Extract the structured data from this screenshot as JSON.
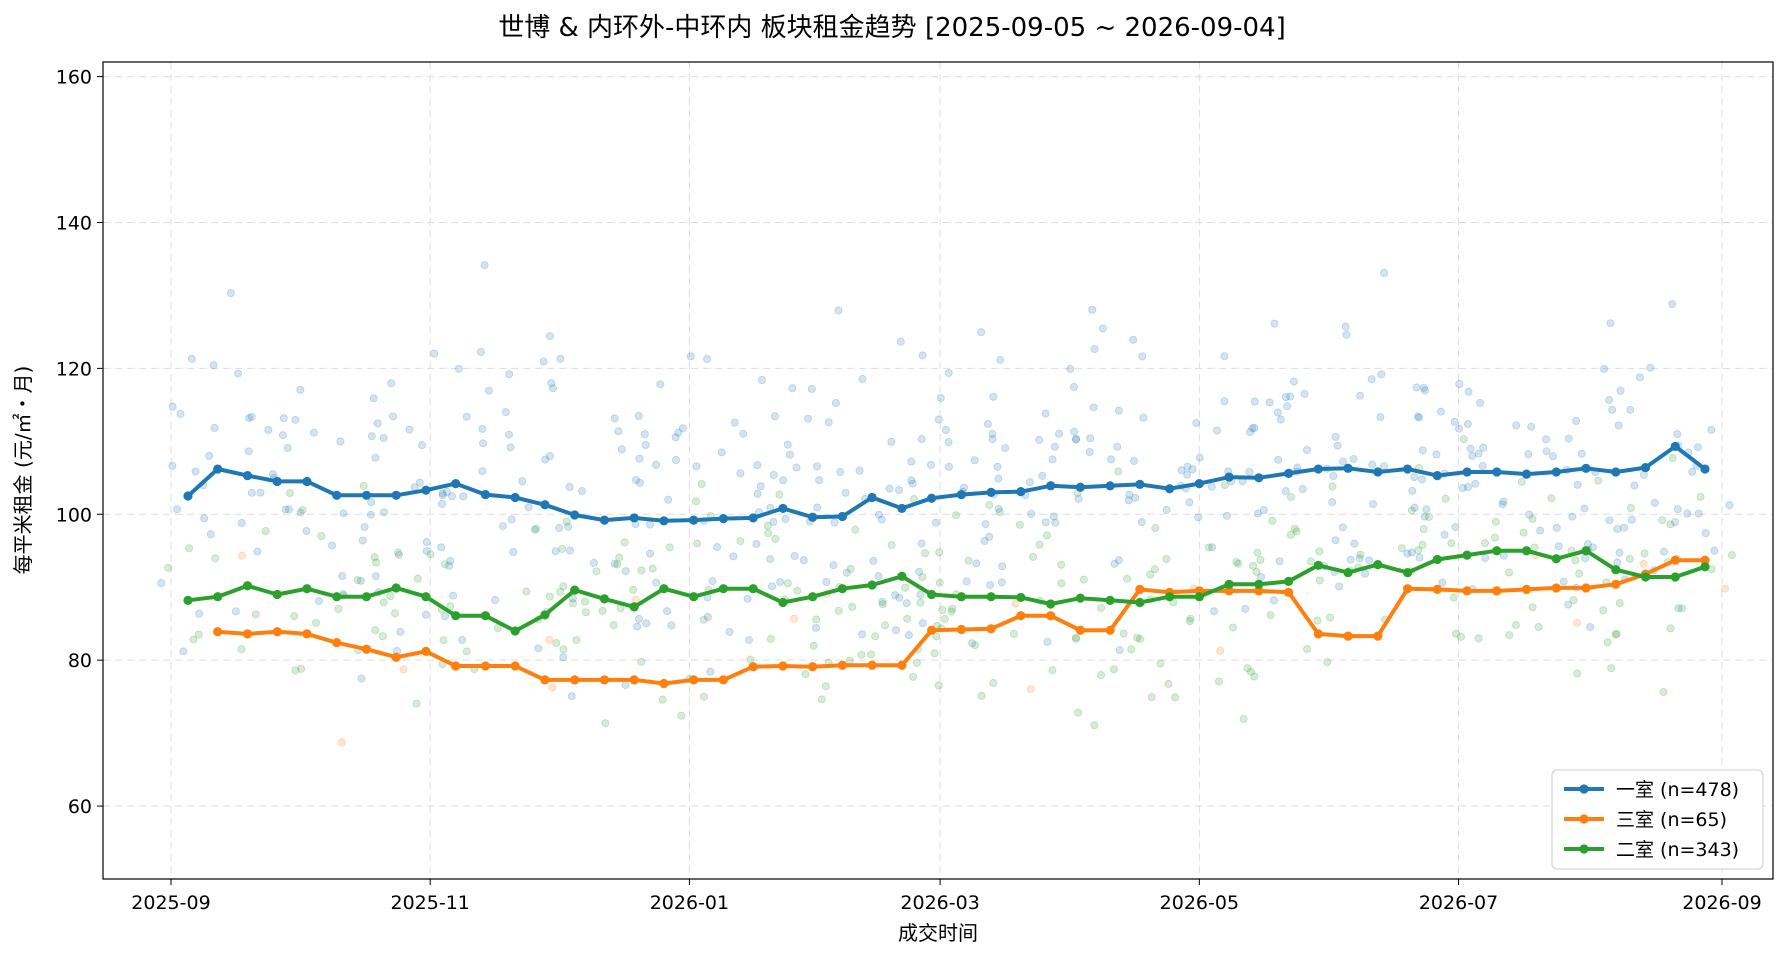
{
  "chart_data": {
    "type": "line",
    "title": "世博 & 内环外-中环内 板块租金趋势   [2025-09-05 ~ 2026-09-04]",
    "xlabel": "成交时间",
    "ylabel": "每平米租金 (元/㎡・月)",
    "xlim": [
      "2025-08-16",
      "2026-09-13"
    ],
    "ylim": [
      50,
      162
    ],
    "grid": true,
    "legend_position": "lower-right",
    "x_ticks": [
      "2025-09",
      "2025-11",
      "2026-01",
      "2026-03",
      "2026-05",
      "2026-07",
      "2026-09"
    ],
    "y_ticks": [
      60,
      80,
      100,
      120,
      140,
      160
    ],
    "series": [
      {
        "name": "一室",
        "legend_label": "一室  (n=478)",
        "count": 478,
        "color": "#1f77b4",
        "points": [
          [
            "2025-09-05",
            102.5
          ],
          [
            "2025-09-12",
            106.2
          ],
          [
            "2025-09-19",
            105.3
          ],
          [
            "2025-09-26",
            104.5
          ],
          [
            "2025-10-03",
            104.5
          ],
          [
            "2025-10-10",
            102.6
          ],
          [
            "2025-10-17",
            102.6
          ],
          [
            "2025-10-24",
            102.6
          ],
          [
            "2025-10-31",
            103.3
          ],
          [
            "2025-11-07",
            104.2
          ],
          [
            "2025-11-14",
            102.7
          ],
          [
            "2025-11-21",
            102.3
          ],
          [
            "2025-11-28",
            101.3
          ],
          [
            "2025-12-05",
            99.9
          ],
          [
            "2025-12-12",
            99.2
          ],
          [
            "2025-12-19",
            99.5
          ],
          [
            "2025-12-26",
            99.1
          ],
          [
            "2026-01-02",
            99.2
          ],
          [
            "2026-01-09",
            99.4
          ],
          [
            "2026-01-16",
            99.5
          ],
          [
            "2026-01-23",
            100.8
          ],
          [
            "2026-01-30",
            99.6
          ],
          [
            "2026-02-06",
            99.7
          ],
          [
            "2026-02-13",
            102.3
          ],
          [
            "2026-02-20",
            100.8
          ],
          [
            "2026-02-27",
            102.2
          ],
          [
            "2026-03-06",
            102.7
          ],
          [
            "2026-03-13",
            103.0
          ],
          [
            "2026-03-20",
            103.1
          ],
          [
            "2026-03-27",
            103.9
          ],
          [
            "2026-04-03",
            103.7
          ],
          [
            "2026-04-10",
            103.9
          ],
          [
            "2026-04-17",
            104.1
          ],
          [
            "2026-04-24",
            103.5
          ],
          [
            "2026-05-01",
            104.2
          ],
          [
            "2026-05-08",
            105.1
          ],
          [
            "2026-05-15",
            105.0
          ],
          [
            "2026-05-22",
            105.6
          ],
          [
            "2026-05-29",
            106.2
          ],
          [
            "2026-06-05",
            106.3
          ],
          [
            "2026-06-12",
            105.8
          ],
          [
            "2026-06-19",
            106.2
          ],
          [
            "2026-06-26",
            105.3
          ],
          [
            "2026-07-03",
            105.8
          ],
          [
            "2026-07-10",
            105.8
          ],
          [
            "2026-07-17",
            105.5
          ],
          [
            "2026-07-24",
            105.8
          ],
          [
            "2026-07-31",
            106.3
          ],
          [
            "2026-08-07",
            105.8
          ],
          [
            "2026-08-14",
            106.4
          ],
          [
            "2026-08-21",
            109.3
          ],
          [
            "2026-08-28",
            106.2
          ]
        ]
      },
      {
        "name": "三室",
        "legend_label": "三室  (n=65)",
        "count": 65,
        "color": "#ff7f0e",
        "points": [
          [
            "2025-09-12",
            83.9
          ],
          [
            "2025-09-19",
            83.6
          ],
          [
            "2025-09-26",
            83.9
          ],
          [
            "2025-10-03",
            83.6
          ],
          [
            "2025-10-10",
            82.4
          ],
          [
            "2025-10-17",
            81.5
          ],
          [
            "2025-10-24",
            80.4
          ],
          [
            "2025-10-31",
            81.2
          ],
          [
            "2025-11-07",
            79.2
          ],
          [
            "2025-11-14",
            79.2
          ],
          [
            "2025-11-21",
            79.2
          ],
          [
            "2025-11-28",
            77.3
          ],
          [
            "2025-12-05",
            77.3
          ],
          [
            "2025-12-12",
            77.3
          ],
          [
            "2025-12-19",
            77.3
          ],
          [
            "2025-12-26",
            76.8
          ],
          [
            "2026-01-02",
            77.3
          ],
          [
            "2026-01-09",
            77.3
          ],
          [
            "2026-01-16",
            79.1
          ],
          [
            "2026-01-23",
            79.2
          ],
          [
            "2026-01-30",
            79.1
          ],
          [
            "2026-02-06",
            79.3
          ],
          [
            "2026-02-13",
            79.3
          ],
          [
            "2026-02-20",
            79.3
          ],
          [
            "2026-02-27",
            84.1
          ],
          [
            "2026-03-06",
            84.2
          ],
          [
            "2026-03-13",
            84.3
          ],
          [
            "2026-03-20",
            86.1
          ],
          [
            "2026-03-27",
            86.1
          ],
          [
            "2026-04-03",
            84.1
          ],
          [
            "2026-04-10",
            84.1
          ],
          [
            "2026-04-17",
            89.7
          ],
          [
            "2026-04-24",
            89.3
          ],
          [
            "2026-05-01",
            89.5
          ],
          [
            "2026-05-08",
            89.5
          ],
          [
            "2026-05-15",
            89.5
          ],
          [
            "2026-05-22",
            89.3
          ],
          [
            "2026-05-29",
            83.6
          ],
          [
            "2026-06-05",
            83.3
          ],
          [
            "2026-06-12",
            83.3
          ],
          [
            "2026-06-19",
            89.8
          ],
          [
            "2026-06-26",
            89.7
          ],
          [
            "2026-07-03",
            89.5
          ],
          [
            "2026-07-10",
            89.5
          ],
          [
            "2026-07-17",
            89.7
          ],
          [
            "2026-07-24",
            89.9
          ],
          [
            "2026-07-31",
            89.9
          ],
          [
            "2026-08-07",
            90.4
          ],
          [
            "2026-08-14",
            91.8
          ],
          [
            "2026-08-21",
            93.7
          ],
          [
            "2026-08-28",
            93.7
          ]
        ]
      },
      {
        "name": "二室",
        "legend_label": "二室  (n=343)",
        "count": 343,
        "color": "#2ca02c",
        "points": [
          [
            "2025-09-05",
            88.2
          ],
          [
            "2025-09-12",
            88.7
          ],
          [
            "2025-09-19",
            90.2
          ],
          [
            "2025-09-26",
            89.0
          ],
          [
            "2025-10-03",
            89.8
          ],
          [
            "2025-10-10",
            88.7
          ],
          [
            "2025-10-17",
            88.7
          ],
          [
            "2025-10-24",
            89.9
          ],
          [
            "2025-10-31",
            88.7
          ],
          [
            "2025-11-07",
            86.1
          ],
          [
            "2025-11-14",
            86.1
          ],
          [
            "2025-11-21",
            84.0
          ],
          [
            "2025-11-28",
            86.2
          ],
          [
            "2025-12-05",
            89.6
          ],
          [
            "2025-12-12",
            88.4
          ],
          [
            "2025-12-19",
            87.3
          ],
          [
            "2025-12-26",
            89.8
          ],
          [
            "2026-01-02",
            88.7
          ],
          [
            "2026-01-09",
            89.8
          ],
          [
            "2026-01-16",
            89.8
          ],
          [
            "2026-01-23",
            87.9
          ],
          [
            "2026-01-30",
            88.7
          ],
          [
            "2026-02-06",
            89.8
          ],
          [
            "2026-02-13",
            90.3
          ],
          [
            "2026-02-20",
            91.5
          ],
          [
            "2026-02-27",
            89.0
          ],
          [
            "2026-03-06",
            88.7
          ],
          [
            "2026-03-13",
            88.7
          ],
          [
            "2026-03-20",
            88.6
          ],
          [
            "2026-03-27",
            87.7
          ],
          [
            "2026-04-03",
            88.5
          ],
          [
            "2026-04-10",
            88.2
          ],
          [
            "2026-04-17",
            87.9
          ],
          [
            "2026-04-24",
            88.7
          ],
          [
            "2026-05-01",
            88.7
          ],
          [
            "2026-05-08",
            90.4
          ],
          [
            "2026-05-15",
            90.4
          ],
          [
            "2026-05-22",
            90.8
          ],
          [
            "2026-05-29",
            93.0
          ],
          [
            "2026-06-05",
            92.0
          ],
          [
            "2026-06-12",
            93.1
          ],
          [
            "2026-06-19",
            92.0
          ],
          [
            "2026-06-26",
            93.8
          ],
          [
            "2026-07-03",
            94.4
          ],
          [
            "2026-07-10",
            95.0
          ],
          [
            "2026-07-17",
            95.0
          ],
          [
            "2026-07-24",
            93.9
          ],
          [
            "2026-07-31",
            95.0
          ],
          [
            "2026-08-07",
            92.4
          ],
          [
            "2026-08-14",
            91.4
          ],
          [
            "2026-08-21",
            91.4
          ],
          [
            "2026-08-28",
            92.8
          ]
        ]
      }
    ]
  }
}
